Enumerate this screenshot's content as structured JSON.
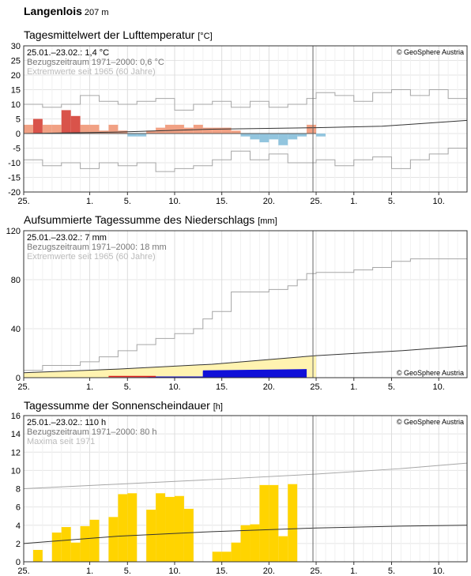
{
  "station": {
    "name": "Langenlois",
    "elevation": "207 m"
  },
  "credit": "© GeoSphere Austria",
  "colors": {
    "temp_warm_dark": "#d9534a",
    "temp_warm_light": "#f1a184",
    "temp_cold_light": "#92c5de",
    "precip_fill": "#fff3b0",
    "precip_obs": "#1010d8",
    "precip_red": "#e02020",
    "sun_fill": "#ffd400",
    "extreme_line": "#a6a6a6",
    "ref_line": "#333333"
  },
  "panels": {
    "temp": {
      "title": "Tagesmittelwert der Lufttemperatur",
      "unit": "[°C]"
    },
    "precip": {
      "title": "Aufsummierte Tagessumme des Niederschlags",
      "unit": "[mm]"
    },
    "sun": {
      "title": "Tagessumme der Sonnenscheindauer",
      "unit": "[h]"
    }
  },
  "chart_data": [
    {
      "type": "bar",
      "title": "Tagesmittelwert der Lufttemperatur [°C]",
      "legend": [
        "25.01.–23.02.: 1,4 °C",
        "Bezugszeitraum 1971–2000: 0,6 °C",
        "Extremwerte seit 1965 (60 Jahre)"
      ],
      "x_tick_labels": [
        "25.",
        "1.",
        "5.",
        "10.",
        "15.",
        "20.",
        "25.",
        "1.",
        "5.",
        "10."
      ],
      "x_tick_days": [
        0,
        7,
        11,
        16,
        21,
        26,
        31,
        35,
        39,
        44
      ],
      "ylim": [
        -20,
        30
      ],
      "y_ticks": [
        -20,
        -15,
        -10,
        -5,
        0,
        5,
        10,
        15,
        20,
        25,
        30
      ],
      "observed_until_day": 30,
      "series": [
        {
          "values": [
            3,
            5,
            3,
            3,
            8,
            6,
            3,
            3,
            1,
            3,
            1,
            -1,
            -1,
            1,
            2,
            3,
            3,
            2,
            3,
            2,
            2,
            2,
            1,
            -1,
            -2,
            -3,
            -2,
            -4,
            -2,
            -1,
            3,
            -1
          ]
        },
        {
          "points": [
            [
              0,
              0
            ],
            [
              10,
              0.5
            ],
            [
              20,
              1.5
            ],
            [
              31,
              2
            ],
            [
              38,
              2.5
            ],
            [
              47,
              4.5
            ]
          ]
        },
        {
          "points": [
            [
              0,
              10
            ],
            [
              2,
              9
            ],
            [
              4,
              10
            ],
            [
              6,
              13
            ],
            [
              8,
              11
            ],
            [
              10,
              10
            ],
            [
              12,
              11
            ],
            [
              14,
              12
            ],
            [
              16,
              8
            ],
            [
              18,
              10
            ],
            [
              20,
              11
            ],
            [
              22,
              9
            ],
            [
              24,
              11
            ],
            [
              26,
              9
            ],
            [
              28,
              10
            ],
            [
              30,
              12
            ],
            [
              31,
              14
            ],
            [
              33,
              13
            ],
            [
              35,
              11
            ],
            [
              37,
              14
            ],
            [
              39,
              15
            ],
            [
              41,
              13
            ],
            [
              43,
              15
            ],
            [
              45,
              12
            ],
            [
              47,
              11
            ]
          ]
        },
        {
          "points": [
            [
              0,
              -9
            ],
            [
              2,
              -11
            ],
            [
              4,
              -10
            ],
            [
              6,
              -12
            ],
            [
              8,
              -10
            ],
            [
              10,
              -11
            ],
            [
              12,
              -10
            ],
            [
              14,
              -13
            ],
            [
              16,
              -12
            ],
            [
              18,
              -11
            ],
            [
              20,
              -9
            ],
            [
              22,
              -6
            ],
            [
              24,
              -9
            ],
            [
              26,
              -7
            ],
            [
              28,
              -10
            ],
            [
              30,
              -10
            ],
            [
              31,
              -9
            ],
            [
              33,
              -11
            ],
            [
              35,
              -9
            ],
            [
              37,
              -8
            ],
            [
              39,
              -12
            ],
            [
              41,
              -9
            ],
            [
              43,
              -7
            ],
            [
              45,
              -5
            ],
            [
              47,
              -3
            ]
          ]
        }
      ]
    },
    {
      "type": "area",
      "title": "Aufsummierte Tagessumme des Niederschlags [mm]",
      "legend": [
        "25.01.–23.02.: 7 mm",
        "Bezugszeitraum 1971–2000: 18 mm",
        "Extremwerte seit 1965 (60 Jahre)"
      ],
      "x_tick_labels": [
        "25.",
        "1.",
        "5.",
        "10.",
        "15.",
        "20.",
        "25.",
        "1.",
        "5.",
        "10."
      ],
      "x_tick_days": [
        0,
        7,
        11,
        16,
        21,
        26,
        31,
        35,
        39,
        44
      ],
      "ylim": [
        0,
        120
      ],
      "y_ticks": [
        0,
        40,
        80,
        120
      ],
      "observed_until_day": 30,
      "series": [
        {
          "points": [
            [
              0,
              0
            ],
            [
              13,
              0.5
            ],
            [
              14,
              1
            ],
            [
              19,
              1
            ],
            [
              19,
              6
            ],
            [
              30,
              7
            ]
          ]
        },
        {
          "points": [
            [
              0,
              4
            ],
            [
              10,
              7
            ],
            [
              20,
              11
            ],
            [
              31,
              18
            ],
            [
              40,
              22
            ],
            [
              47,
              26
            ]
          ]
        },
        {
          "points": [
            [
              0,
              6
            ],
            [
              2,
              6
            ],
            [
              2,
              10
            ],
            [
              6,
              13
            ],
            [
              8,
              17
            ],
            [
              10,
              22
            ],
            [
              12,
              27
            ],
            [
              14,
              32
            ],
            [
              16,
              36
            ],
            [
              18,
              40
            ],
            [
              19,
              48
            ],
            [
              20,
              54
            ],
            [
              22,
              70
            ],
            [
              26,
              72
            ],
            [
              28,
              75
            ],
            [
              29,
              80
            ],
            [
              30,
              85
            ],
            [
              31,
              86
            ],
            [
              35,
              88
            ],
            [
              37,
              90
            ],
            [
              39,
              95
            ],
            [
              41,
              97
            ],
            [
              47,
              97
            ]
          ]
        },
        {
          "points": [
            [
              0,
              0
            ],
            [
              47,
              0
            ]
          ]
        }
      ]
    },
    {
      "type": "bar",
      "title": "Tagessumme der Sonnenscheindauer [h]",
      "legend": [
        "25.01.–23.02.: 110 h",
        "Bezugszeitraum 1971–2000: 80 h",
        "Maxima seit 1971"
      ],
      "x_tick_labels": [
        "25.",
        "1.",
        "5.",
        "10.",
        "15.",
        "20.",
        "25.",
        "1.",
        "5.",
        "10."
      ],
      "x_tick_days": [
        0,
        7,
        11,
        16,
        21,
        26,
        31,
        35,
        39,
        44
      ],
      "ylim": [
        0,
        16
      ],
      "y_ticks": [
        0,
        2,
        4,
        6,
        8,
        10,
        12,
        14,
        16
      ],
      "observed_until_day": 30,
      "series": [
        {
          "values": [
            0,
            1.3,
            0,
            3.2,
            3.8,
            2.1,
            3.9,
            4.6,
            0,
            4.9,
            7.4,
            7.5,
            0,
            5.7,
            7.5,
            7.1,
            7.2,
            5.8,
            0,
            0,
            1.1,
            1.1,
            2.1,
            4.0,
            4.1,
            8.4,
            8.4,
            2.8,
            8.5,
            0
          ]
        },
        {
          "points": [
            [
              0,
              2
            ],
            [
              10,
              2.8
            ],
            [
              20,
              3.3
            ],
            [
              31,
              3.7
            ],
            [
              40,
              3.9
            ],
            [
              47,
              4
            ]
          ]
        },
        {
          "points": [
            [
              0,
              8
            ],
            [
              10,
              8.5
            ],
            [
              20,
              9
            ],
            [
              31,
              9.6
            ],
            [
              40,
              10.2
            ],
            [
              47,
              10.8
            ]
          ]
        }
      ]
    }
  ]
}
